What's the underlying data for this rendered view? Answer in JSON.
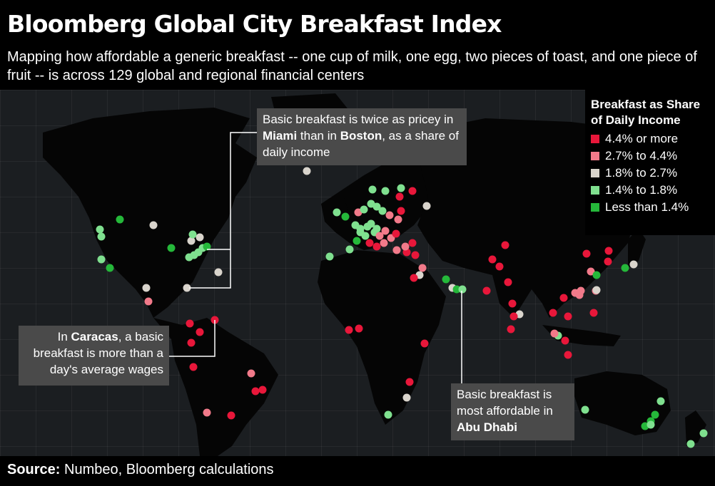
{
  "title": "Bloomberg Global City Breakfast Index",
  "subtitle": "Mapping how affordable a generic breakfast -- one cup of milk, one egg, two pieces of toast, and one piece of fruit -- is across 129 global and regional financial centers",
  "legend": {
    "title_line1": "Breakfast as Share",
    "title_line2": "of Daily Income",
    "items": [
      {
        "label": "4.4% or more",
        "color": "#e8173a"
      },
      {
        "label": "2.7% to 4.4%",
        "color": "#f27a8a"
      },
      {
        "label": "1.8% to 2.7%",
        "color": "#d9d4cc"
      },
      {
        "label": "1.4% to 1.8%",
        "color": "#7fe08f"
      },
      {
        "label": "Less than 1.4%",
        "color": "#25b83a"
      }
    ]
  },
  "callouts": {
    "miami": {
      "pre": "Basic breakfast is twice as pricey in ",
      "b1": "Miami",
      "mid": " than in ",
      "b2": "Boston",
      "post": ", as a share of daily income"
    },
    "caracas": {
      "pre": "In ",
      "b1": "Caracas",
      "post": ", a basic breakfast is more than a day's average wages"
    },
    "abudhabi": {
      "pre": "Basic breakfast is most affordable in ",
      "b1": "Abu Dhabi"
    }
  },
  "source": {
    "label": "Source:",
    "text": " Numbeo, Bloomberg calculations"
  },
  "colors": {
    "map_bg": "#1b1e21",
    "land": "#050505",
    "callout_bg": "#4a4a4a"
  }
}
